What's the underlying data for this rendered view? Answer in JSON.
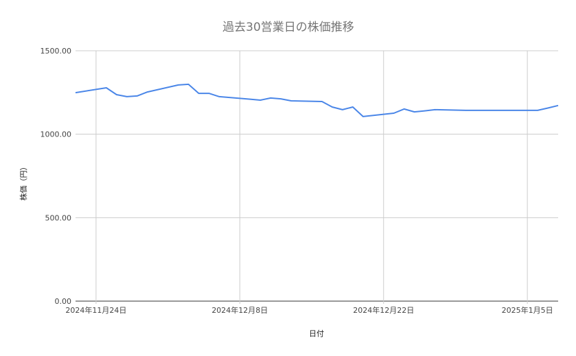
{
  "chart_data": {
    "type": "line",
    "title": "過去30営業日の株価推移",
    "xlabel": "日付",
    "ylabel": "株価（円）",
    "ylim": [
      0,
      1500
    ],
    "xlim": [
      "2024-11-22",
      "2025-01-08"
    ],
    "grid": true,
    "legend": "none",
    "y_ticks": [
      {
        "v": 0,
        "label": "0.00"
      },
      {
        "v": 500,
        "label": "500.00"
      },
      {
        "v": 1000,
        "label": "1000.00"
      },
      {
        "v": 1500,
        "label": "1500.00"
      }
    ],
    "x_ticks": [
      {
        "date": "2024-11-24",
        "label": "2024年11月24日"
      },
      {
        "date": "2024-12-08",
        "label": "2024年12月8日"
      },
      {
        "date": "2024-12-22",
        "label": "2024年12月22日"
      },
      {
        "date": "2025-01-05",
        "label": "2025年1月5日"
      }
    ],
    "series": [
      {
        "color": "#4a86e8",
        "points": [
          [
            "2024-11-22",
            1249
          ],
          [
            "2024-11-25",
            1278
          ],
          [
            "2024-11-26",
            1237
          ],
          [
            "2024-11-27",
            1225
          ],
          [
            "2024-11-28",
            1229
          ],
          [
            "2024-11-29",
            1253
          ],
          [
            "2024-12-02",
            1295
          ],
          [
            "2024-12-03",
            1299
          ],
          [
            "2024-12-04",
            1245
          ],
          [
            "2024-12-05",
            1245
          ],
          [
            "2024-12-06",
            1225
          ],
          [
            "2024-12-09",
            1210
          ],
          [
            "2024-12-10",
            1204
          ],
          [
            "2024-12-11",
            1217
          ],
          [
            "2024-12-12",
            1212
          ],
          [
            "2024-12-13",
            1200
          ],
          [
            "2024-12-16",
            1196
          ],
          [
            "2024-12-17",
            1163
          ],
          [
            "2024-12-18",
            1147
          ],
          [
            "2024-12-19",
            1163
          ],
          [
            "2024-12-20",
            1106
          ],
          [
            "2024-12-23",
            1126
          ],
          [
            "2024-12-24",
            1151
          ],
          [
            "2024-12-25",
            1134
          ],
          [
            "2024-12-26",
            1140
          ],
          [
            "2024-12-27",
            1147
          ],
          [
            "2024-12-30",
            1143
          ],
          [
            "2024-12-31",
            1143
          ],
          [
            "2025-01-01",
            1143
          ],
          [
            "2025-01-02",
            1143
          ],
          [
            "2025-01-03",
            1143
          ],
          [
            "2025-01-06",
            1143
          ],
          [
            "2025-01-07",
            1157
          ],
          [
            "2025-01-08",
            1172
          ]
        ]
      }
    ]
  }
}
